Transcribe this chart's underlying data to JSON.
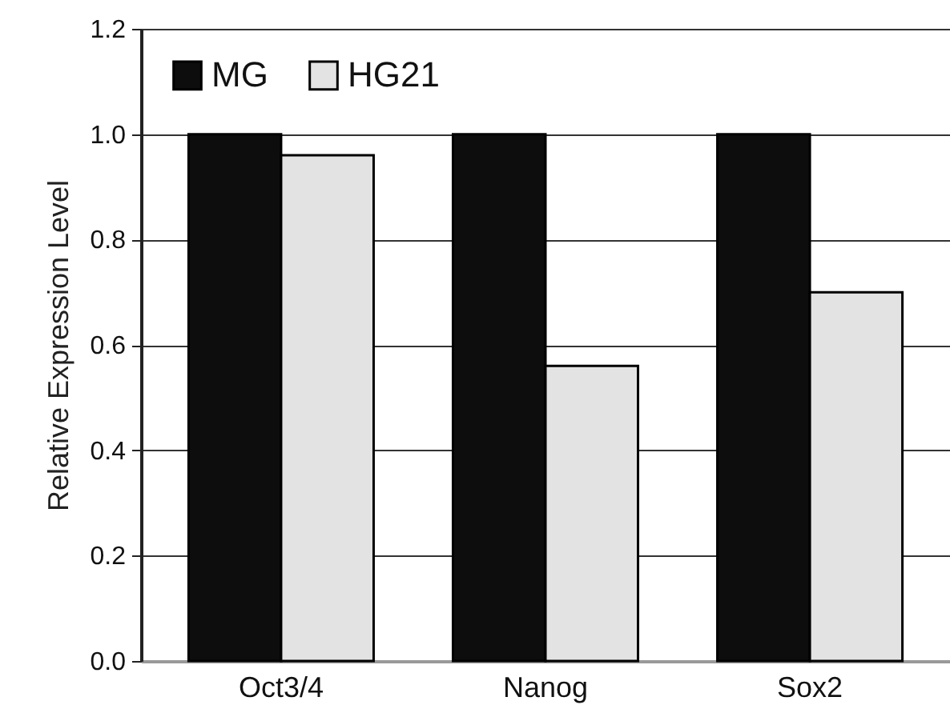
{
  "chart_data": {
    "type": "bar",
    "ylabel": "Relative Expression Level",
    "categories": [
      "Oct3/4",
      "Nanog",
      "Sox2"
    ],
    "series": [
      {
        "name": "MG",
        "color": "#0d0d0d",
        "values": [
          1.0,
          1.0,
          1.0
        ]
      },
      {
        "name": "HG21",
        "color": "#e3e3e3",
        "values": [
          0.96,
          0.56,
          0.7
        ]
      }
    ],
    "ylim": [
      0,
      1.2
    ],
    "yticks": [
      {
        "value": 0,
        "label": "0.0"
      },
      {
        "value": 0.2,
        "label": "0.2"
      },
      {
        "value": 0.4,
        "label": "0.4"
      },
      {
        "value": 0.6,
        "label": "0.6"
      },
      {
        "value": 0.8,
        "label": "0.8"
      },
      {
        "value": 1,
        "label": "1.0"
      },
      {
        "value": 1.2,
        "label": "1.2"
      }
    ],
    "grid": "y",
    "legend": "top left"
  }
}
